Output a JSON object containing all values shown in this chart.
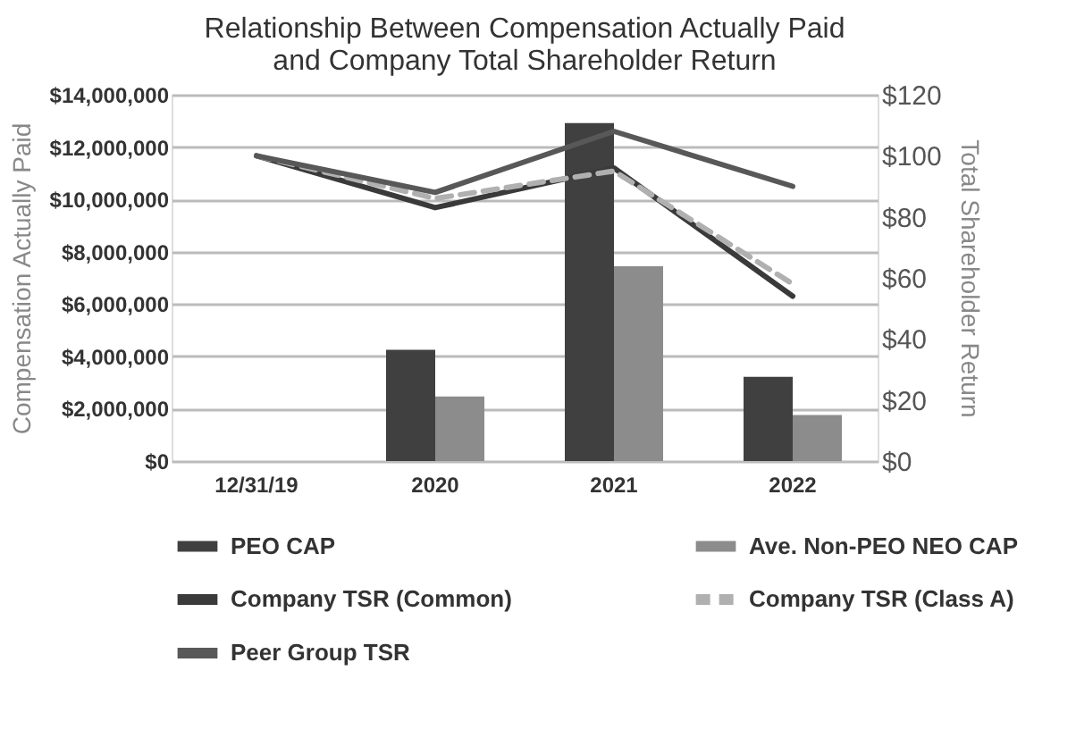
{
  "chart_data": {
    "type": "bar",
    "title": "Relationship Between Compensation Actually Paid\nand Company Total Shareholder Return",
    "categories": [
      "12/31/19",
      "2020",
      "2021",
      "2022"
    ],
    "ylabel": "Compensation Actually Paid",
    "y2label": "Total Shareholder Return",
    "ylim": [
      0,
      14000000
    ],
    "yticks": [
      {
        "value": 0,
        "label": "$0"
      },
      {
        "value": 2000000,
        "label": "$2,000,000"
      },
      {
        "value": 4000000,
        "label": "$4,000,000"
      },
      {
        "value": 6000000,
        "label": "$6,000,000"
      },
      {
        "value": 8000000,
        "label": "$8,000,000"
      },
      {
        "value": 10000000,
        "label": "$10,000,000"
      },
      {
        "value": 12000000,
        "label": "$12,000,000"
      },
      {
        "value": 14000000,
        "label": "$14,000,000"
      }
    ],
    "y2lim": [
      0,
      120
    ],
    "y2ticks": [
      {
        "value": 0,
        "label": "$0"
      },
      {
        "value": 20,
        "label": "$20"
      },
      {
        "value": 40,
        "label": "$40"
      },
      {
        "value": 60,
        "label": "$60"
      },
      {
        "value": 80,
        "label": "$80"
      },
      {
        "value": 100,
        "label": "$100"
      },
      {
        "value": 120,
        "label": "$120"
      }
    ],
    "grid": "y",
    "legend": "bottom",
    "series": [
      {
        "name": "PEO CAP",
        "color": "#404040",
        "values": [
          null,
          4250000,
          12920000,
          3220000
        ]
      },
      {
        "name": "Ave. Non-PEO NEO CAP",
        "color": "#8c8c8c",
        "values": [
          null,
          2470000,
          7440000,
          1760000
        ]
      },
      {
        "name": "Company TSR (Common)",
        "type": "line",
        "axis": "y2",
        "color": "#3a3a3a",
        "line_style": "solid",
        "values": [
          100,
          83,
          96,
          54
        ]
      },
      {
        "name": "Company TSR (Class A)",
        "type": "line",
        "axis": "y2",
        "color": "#b0b0b0",
        "line_style": "dashed",
        "values": [
          100,
          86,
          95,
          58
        ]
      },
      {
        "name": "Peer Group TSR",
        "type": "line",
        "axis": "y2",
        "color": "#585858",
        "line_style": "solid",
        "values": [
          100,
          88,
          108,
          90
        ]
      }
    ]
  }
}
